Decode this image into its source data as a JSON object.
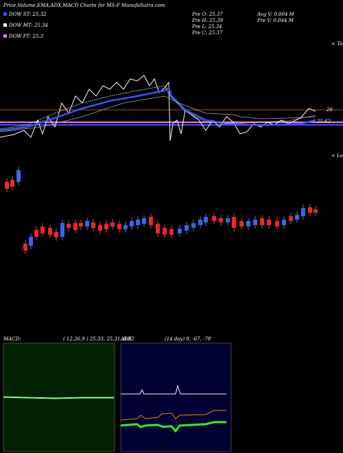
{
  "header": {
    "title": "Price,Volume,EMA,ADX,MACD Charts for MS-F MunafaSutra.com"
  },
  "legend": [
    "DOW ST: 25.32",
    "DOW MT: 25.34",
    "DOW PT: 25.3"
  ],
  "prev": [
    "Pre  O: 25.37",
    "Pre  H: 25.39",
    "Pre  L: 25.34",
    "Pre  C: 25.37"
  ],
  "volume": [
    "Avg V: 0.004  M",
    "Pre  V: 0.044  M"
  ],
  "price_panel": {
    "tops": "< Tops",
    "lows": "< Lows",
    "level_high": "26",
    "level_low": "25.62"
  },
  "macd": {
    "label": "MACD:",
    "params": "( 12,26,9 ) 25.33, 25.31, 0.02"
  },
  "adx": {
    "label": "ADX",
    "params": "(14  day) 8, -67, -78"
  }
}
